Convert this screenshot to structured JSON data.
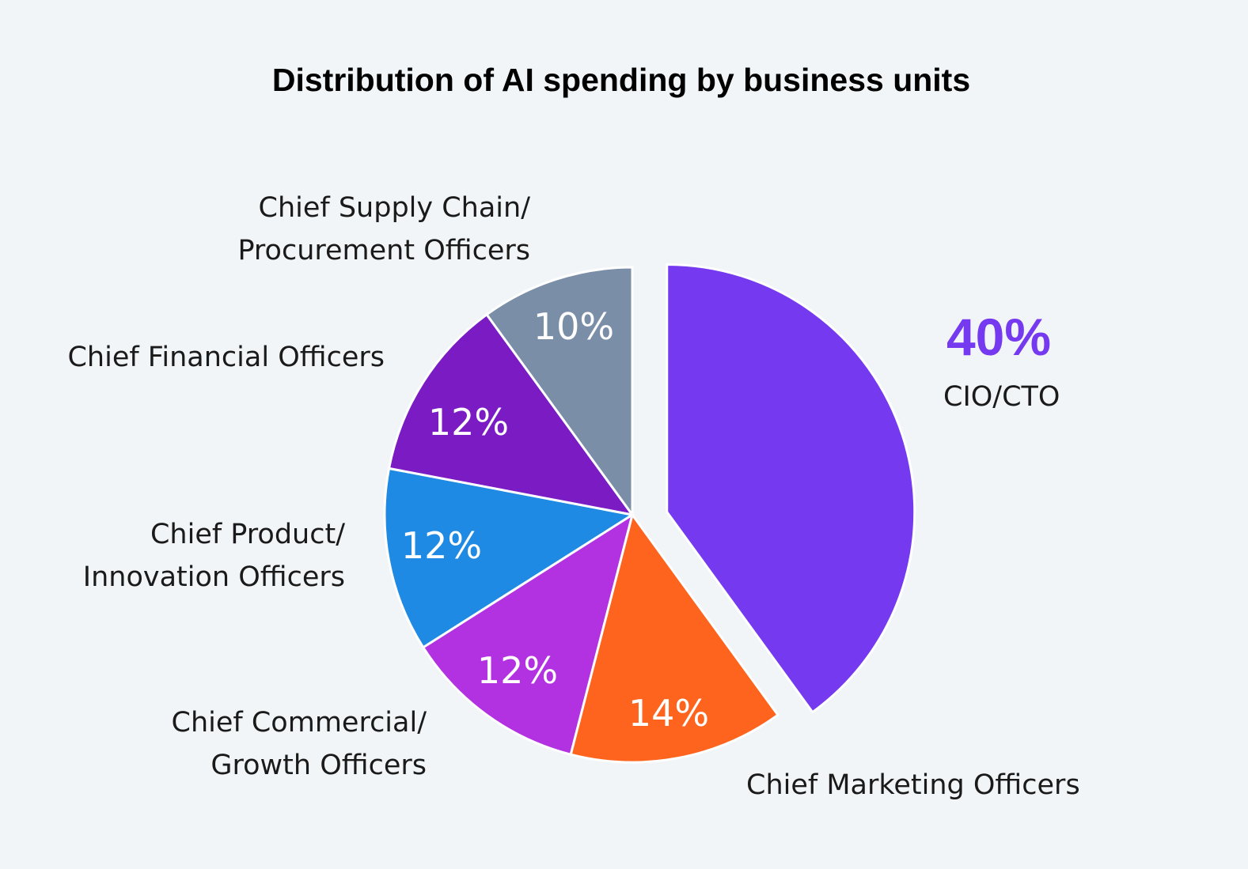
{
  "chart_data": {
    "type": "pie",
    "title": "Distribution of AI spending by business units",
    "unit": "%",
    "slices": [
      {
        "label": "CIO/CTO",
        "value": 40,
        "display": "40%",
        "color": "#7539f0",
        "exploded": true
      },
      {
        "label": "Chief Marketing Officers",
        "value": 14,
        "display": "14%",
        "color": "#fe641e"
      },
      {
        "label": "Chief Commercial/ Growth Officers",
        "label_lines": [
          "Chief Commercial/",
          "Growth Officers"
        ],
        "value": 12,
        "display": "12%",
        "color": "#b232e2"
      },
      {
        "label": "Chief Product/ Innovation Officers",
        "label_lines": [
          "Chief Product/",
          "Innovation Officers"
        ],
        "value": 12,
        "display": "12%",
        "color": "#1e8ae4"
      },
      {
        "label": "Chief Financial Officers",
        "value": 12,
        "display": "12%",
        "color": "#7a1bc3"
      },
      {
        "label": "Chief Supply Chain/ Procurement Officers",
        "label_lines": [
          "Chief Supply Chain/",
          "Procurement Officers"
        ],
        "value": 10,
        "display": "10%",
        "color": "#7a8ea8"
      }
    ]
  }
}
